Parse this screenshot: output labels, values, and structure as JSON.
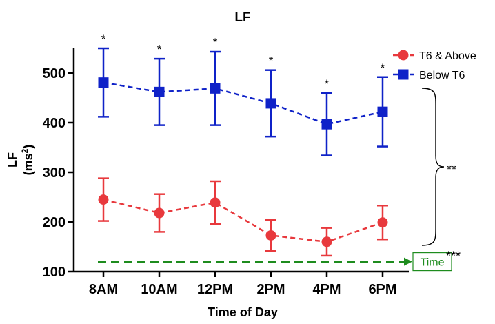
{
  "chart_data": {
    "type": "line",
    "title": "LF",
    "xlabel": "Time of Day",
    "ylabel": "LF",
    "ylabel_unit": "(ms",
    "ylabel_unit_sup": "2",
    "ylabel_unit_close": ")",
    "categories": [
      "8AM",
      "10AM",
      "12PM",
      "2PM",
      "4PM",
      "6PM"
    ],
    "ylim": [
      100,
      550
    ],
    "yticks": [
      100,
      200,
      300,
      400,
      500
    ],
    "legend_position": "top-right",
    "series": [
      {
        "name": "T6 & Above",
        "marker": "circle",
        "color": "#e8393d",
        "values": [
          245,
          218,
          239,
          173,
          160,
          199
        ],
        "error": [
          43,
          38,
          43,
          31,
          28,
          34
        ]
      },
      {
        "name": "Below T6",
        "marker": "square",
        "color": "#0f22c8",
        "values": [
          481,
          462,
          469,
          439,
          397,
          422
        ],
        "error": [
          69,
          67,
          74,
          67,
          63,
          70
        ]
      }
    ],
    "point_annotations": [
      "*",
      "*",
      "*",
      "*",
      "*",
      "*"
    ],
    "group_annotation": "**",
    "time_annotation": "***",
    "time_arrow_label": "Time",
    "time_arrow_color": "#1e8c1e",
    "time_arrow_y": 120
  }
}
